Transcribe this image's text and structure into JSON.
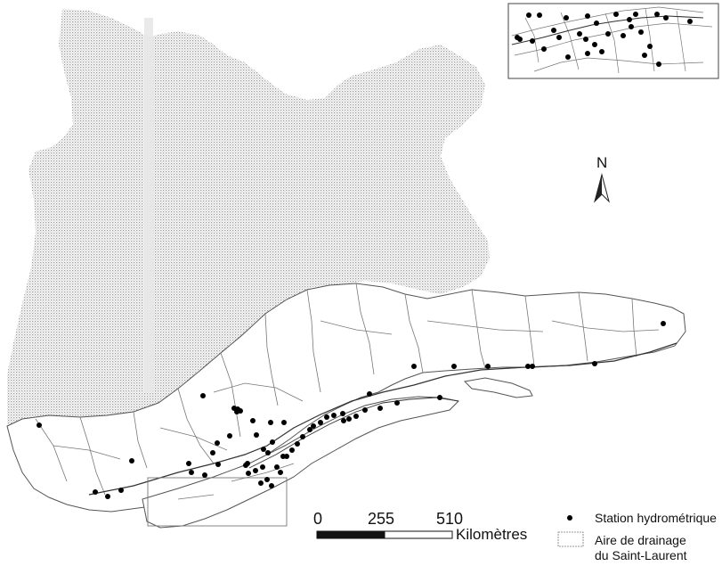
{
  "map": {
    "north_label": "N",
    "scale": {
      "ticks": [
        "0",
        "255",
        "510"
      ],
      "unit": "Kilomètres"
    },
    "legend": {
      "station_label": "Station hydrométrique",
      "basin_label_line1": "Aire de drainage",
      "basin_label_line2": "du Saint-Laurent"
    },
    "colors": {
      "land_stipple": "#b8b8b8",
      "basin_fill": "#ffffff",
      "outline": "#555555",
      "station_dot": "#000000",
      "river": "#333333"
    },
    "station_count_main": 60,
    "station_count_inset": 30
  }
}
